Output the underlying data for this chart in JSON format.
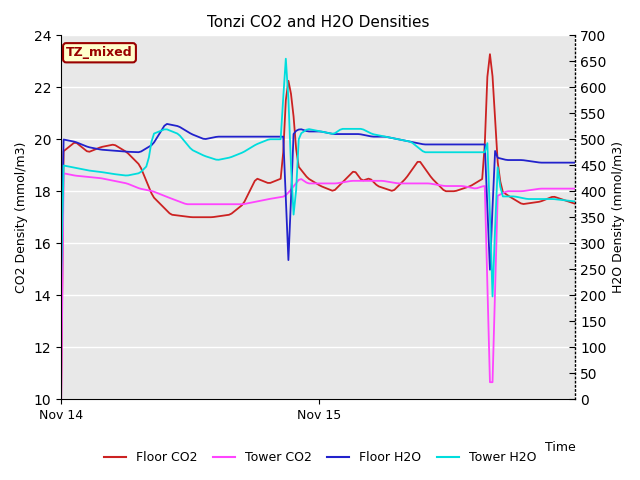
{
  "title": "Tonzi CO2 and H2O Densities",
  "xlabel": "Time",
  "ylabel_left": "CO2 Density (mmol/m3)",
  "ylabel_right": "H2O Density (mmol/m3)",
  "ylim_left": [
    10,
    24
  ],
  "ylim_right": [
    0,
    700
  ],
  "yticks_left": [
    10,
    12,
    14,
    16,
    18,
    20,
    22,
    24
  ],
  "yticks_right": [
    0,
    50,
    100,
    150,
    200,
    250,
    300,
    350,
    400,
    450,
    500,
    550,
    600,
    650,
    700
  ],
  "xtick_labels": [
    "Nov 14",
    "Nov 15"
  ],
  "annotation_text": "TZ_mixed",
  "annotation_bg": "#ffffcc",
  "annotation_fg": "#990000",
  "bg_color": "#e8e8e8",
  "grid_color": "#ffffff",
  "colors": {
    "floor_co2": "#cc2222",
    "tower_co2": "#ff44ff",
    "floor_h2o": "#2222cc",
    "tower_h2o": "#00dddd"
  },
  "legend_labels": [
    "Floor CO2",
    "Tower CO2",
    "Floor H2O",
    "Tower H2O"
  ]
}
